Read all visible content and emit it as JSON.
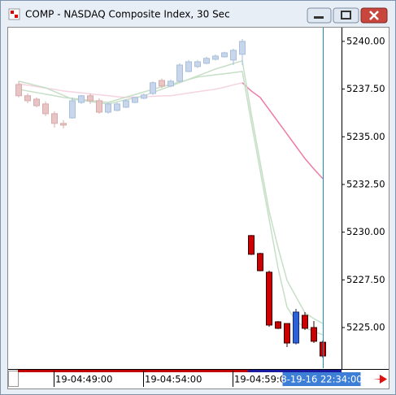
{
  "window": {
    "title": "COMP - NASDAQ Composite Index, 30 Sec"
  },
  "chart_data": {
    "type": "candlestick",
    "ylim": [
      5222.87,
      5240.72
    ],
    "yticks": [
      {
        "value": 5240,
        "label": "5240.00"
      },
      {
        "value": 5237.5,
        "label": "5237.50"
      },
      {
        "value": 5235,
        "label": "5235.00"
      },
      {
        "value": 5232.5,
        "label": "5232.50"
      },
      {
        "value": 5230,
        "label": "5230.00"
      },
      {
        "value": 5227.5,
        "label": "5227.50"
      },
      {
        "value": 5225,
        "label": "5225.00"
      }
    ],
    "categories": [
      null,
      null,
      null,
      null,
      "19-04:49:00",
      null,
      null,
      null,
      null,
      null,
      null,
      null,
      null,
      null,
      "19-04:54:00",
      null,
      null,
      null,
      null,
      null,
      null,
      null,
      null,
      null,
      "19-04:59:00",
      null,
      null,
      null,
      null,
      null,
      null,
      null,
      null,
      null,
      "8-19-16 22:34:00"
    ],
    "cursor_index": 34,
    "series": [
      {
        "color_up": "#c7d6ea",
        "color_down": "#e9c4c4",
        "outline_up": "#a9bfdc",
        "outline_down": "#d8abab",
        "open": [
          5237.74,
          5237.15,
          5236.97,
          5236.72,
          5236.21,
          5235.7,
          5235.99,
          5236.8,
          5237.15,
          5236.89,
          5236.29,
          5236.38,
          5236.55,
          5236.8,
          5237.02,
          5237.27,
          5237.95,
          5237.66,
          5237.91,
          5238.42,
          5238.68,
          5238.85,
          5239.06,
          5239.19,
          5239.02,
          5239.32,
          null,
          null,
          null,
          null,
          null,
          null,
          null,
          null,
          null
        ],
        "high": [
          5237.91,
          5237.27,
          5237.06,
          5236.85,
          5236.34,
          5235.87,
          5237.06,
          5237.19,
          5237.27,
          5237.02,
          5236.8,
          5236.8,
          5236.97,
          5237.06,
          5237.27,
          5237.91,
          5238.05,
          5238.0,
          5238.85,
          5239.02,
          5239.02,
          5239.19,
          5239.32,
          5239.45,
          5239.62,
          5240.13,
          null,
          null,
          null,
          null,
          null,
          null,
          null,
          null,
          null
        ],
        "low": [
          5237.06,
          5236.76,
          5236.55,
          5236.08,
          5235.48,
          5235.44,
          5235.95,
          5236.72,
          5236.72,
          5236.21,
          5236.21,
          5236.34,
          5236.5,
          5236.76,
          5236.97,
          5237.19,
          5237.55,
          5237.6,
          5237.85,
          5238.38,
          5238.6,
          5238.8,
          5239.0,
          5239.15,
          5238.76,
          5238.76,
          null,
          null,
          null,
          null,
          null,
          null,
          null,
          null,
          null
        ],
        "close": [
          5237.15,
          5236.89,
          5236.63,
          5236.21,
          5235.7,
          5235.61,
          5236.89,
          5237.15,
          5236.89,
          5236.29,
          5236.72,
          5236.72,
          5236.89,
          5237.06,
          5237.19,
          5237.83,
          5237.66,
          5237.91,
          5238.76,
          5238.93,
          5238.93,
          5239.11,
          5239.23,
          5239.4,
          5239.53,
          5240.0,
          null,
          null,
          null,
          null,
          null,
          null,
          null,
          null,
          null
        ]
      },
      {
        "color_up": "#2a63d9",
        "color_down": "#cc0000",
        "outline_up": "#1a2a6a",
        "outline_down": "#3a0000",
        "open": [
          null,
          null,
          null,
          null,
          null,
          null,
          null,
          null,
          null,
          null,
          null,
          null,
          null,
          null,
          null,
          null,
          null,
          null,
          null,
          null,
          null,
          null,
          null,
          null,
          null,
          null,
          5229.82,
          5228.88,
          5227.9,
          5225.3,
          5225.21,
          5224.19,
          5225.64,
          5225.0,
          5224.23
        ],
        "high": [
          null,
          null,
          null,
          null,
          null,
          null,
          null,
          null,
          null,
          null,
          null,
          null,
          null,
          null,
          null,
          null,
          null,
          null,
          null,
          null,
          null,
          null,
          null,
          null,
          null,
          null,
          5229.85,
          5228.92,
          5227.98,
          5225.34,
          5225.21,
          5225.98,
          5225.81,
          5225.34,
          5224.32
        ],
        "low": [
          null,
          null,
          null,
          null,
          null,
          null,
          null,
          null,
          null,
          null,
          null,
          null,
          null,
          null,
          null,
          null,
          null,
          null,
          null,
          null,
          null,
          null,
          null,
          null,
          null,
          null,
          5228.8,
          5227.95,
          5225.04,
          5224.92,
          5223.98,
          5224.11,
          5224.87,
          5224.19,
          5223.42
        ],
        "close": [
          null,
          null,
          null,
          null,
          null,
          null,
          null,
          null,
          null,
          null,
          null,
          null,
          null,
          null,
          null,
          null,
          null,
          null,
          null,
          null,
          null,
          null,
          null,
          null,
          null,
          null,
          5228.84,
          5227.98,
          5225.13,
          5224.96,
          5224.19,
          5225.81,
          5224.96,
          5224.28,
          5223.51
        ]
      }
    ],
    "lines": [
      {
        "color": "#f5d3e0",
        "values": [
          5237.78,
          5237.7,
          5237.63,
          5237.55,
          5237.48,
          5237.4,
          5237.35,
          5237.3,
          5237.25,
          5237.2,
          5237.15,
          5237.1,
          5237.06,
          5237.08,
          5237.1,
          5237.12,
          5237.14,
          5237.15,
          5237.22,
          5237.29,
          5237.36,
          5237.43,
          5237.49,
          5237.6,
          5237.72,
          5237.83,
          null,
          null,
          null,
          null,
          null,
          null,
          null,
          null,
          null
        ]
      },
      {
        "color": "#ee7aa8",
        "values": [
          null,
          null,
          null,
          null,
          null,
          null,
          null,
          null,
          null,
          null,
          null,
          null,
          null,
          null,
          null,
          null,
          null,
          null,
          null,
          null,
          null,
          null,
          null,
          null,
          null,
          5237.83,
          5237.4,
          5237.06,
          5236.42,
          5235.78,
          5235.14,
          5234.5,
          5233.86,
          5233.31,
          5232.8
        ]
      },
      {
        "color": "#c6dfc6",
        "values": [
          5237.91,
          5237.8,
          5237.68,
          5237.57,
          5237.37,
          5237.17,
          5236.97,
          5236.91,
          5236.85,
          5236.78,
          5236.72,
          5236.83,
          5236.94,
          5237.04,
          5237.15,
          5237.32,
          5237.49,
          5237.66,
          5237.83,
          5238.01,
          5238.19,
          5238.37,
          5238.55,
          5238.69,
          5238.84,
          5238.98,
          5236.21,
          5233.65,
          5231.09,
          5229.18,
          5227.47,
          5226.62,
          5225.77,
          5225.47,
          5225.21
        ]
      },
      {
        "color": "#c6dfc6",
        "values": [
          5237.49,
          5237.4,
          5237.32,
          5237.23,
          5237.15,
          5237.06,
          5237.01,
          5236.96,
          5236.9,
          5236.85,
          5236.8,
          5236.94,
          5237.08,
          5237.21,
          5237.35,
          5237.49,
          5237.62,
          5237.75,
          5237.87,
          5238.0,
          5238.13,
          5238.19,
          5238.25,
          5238.3,
          5238.36,
          5238.42,
          5235.78,
          5233.22,
          5230.67,
          5228.11,
          5226.07,
          5225.34,
          5225.0,
          5224.79,
          5224.62
        ]
      }
    ]
  }
}
